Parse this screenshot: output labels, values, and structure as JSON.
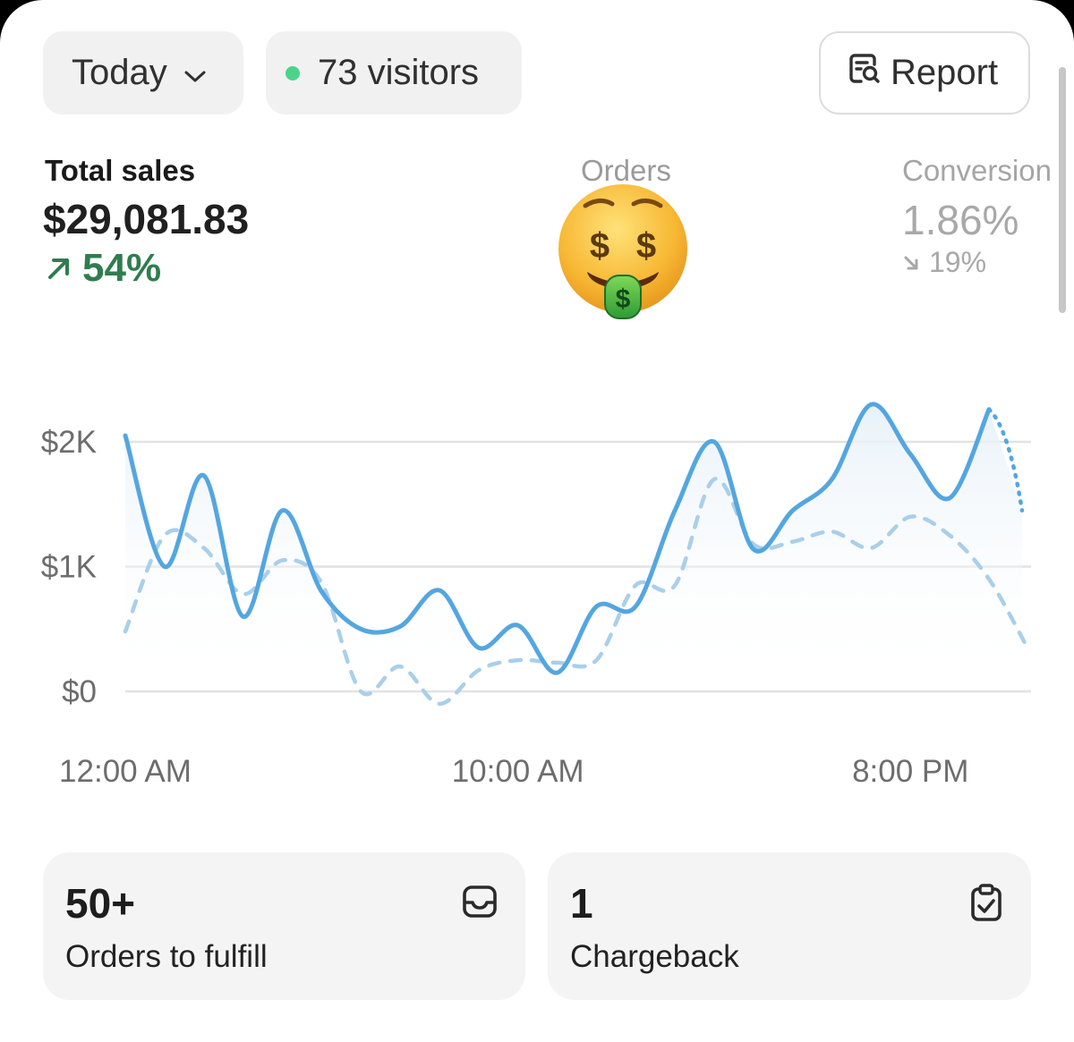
{
  "header": {
    "period_label": "Today",
    "visitors_label": "73 visitors",
    "report_label": "Report"
  },
  "metrics": {
    "total_sales": {
      "label": "Total sales",
      "value": "$29,081.83",
      "change": "54%",
      "trend": "up"
    },
    "orders": {
      "label": "Orders",
      "emoji": "money-mouth-face"
    },
    "conversion": {
      "label": "Conversion",
      "value": "1.86%",
      "change": "19%",
      "trend": "down"
    }
  },
  "colors": {
    "primary_line": "#54a6e0",
    "comparison_line": "#a9cfea",
    "positive": "#2f7d4f",
    "live_dot": "#4ad48a"
  },
  "chart_data": {
    "type": "line",
    "title": "",
    "xlabel": "",
    "ylabel": "",
    "ylim": [
      0,
      2000
    ],
    "ytick_labels": [
      "$2K",
      "$1K",
      "$0"
    ],
    "xtick_labels": [
      "12:00 AM",
      "10:00 AM",
      "8:00 PM"
    ],
    "x": [
      "12 AM",
      "1 AM",
      "2 AM",
      "3 AM",
      "4 AM",
      "5 AM",
      "6 AM",
      "7 AM",
      "8 AM",
      "9 AM",
      "10 AM",
      "11 AM",
      "12 PM",
      "1 PM",
      "2 PM",
      "3 PM",
      "4 PM",
      "5 PM",
      "6 PM",
      "7 PM",
      "8 PM",
      "9 PM",
      "10 PM"
    ],
    "series": [
      {
        "style": "solid",
        "values": [
          2050,
          1000,
          1730,
          600,
          1450,
          800,
          500,
          520,
          810,
          350,
          530,
          150,
          680,
          680,
          1450,
          2000,
          1140,
          1450,
          1700,
          2300,
          1900,
          1550,
          2260
        ]
      },
      {
        "style": "dashed",
        "values": [
          480,
          1250,
          1150,
          780,
          1050,
          870,
          0,
          200,
          -100,
          170,
          250,
          230,
          250,
          850,
          850,
          1700,
          1180,
          1200,
          1280,
          1150,
          1400,
          1250,
          900
        ]
      }
    ],
    "projection": {
      "from": 2260,
      "to": 1450
    },
    "final_comparison_value": 350,
    "grid": true
  },
  "cards": [
    {
      "value": "50+",
      "label": "Orders to fulfill",
      "icon": "inbox-icon"
    },
    {
      "value": "1",
      "label": "Chargeback",
      "icon": "clipboard-check-icon"
    }
  ]
}
